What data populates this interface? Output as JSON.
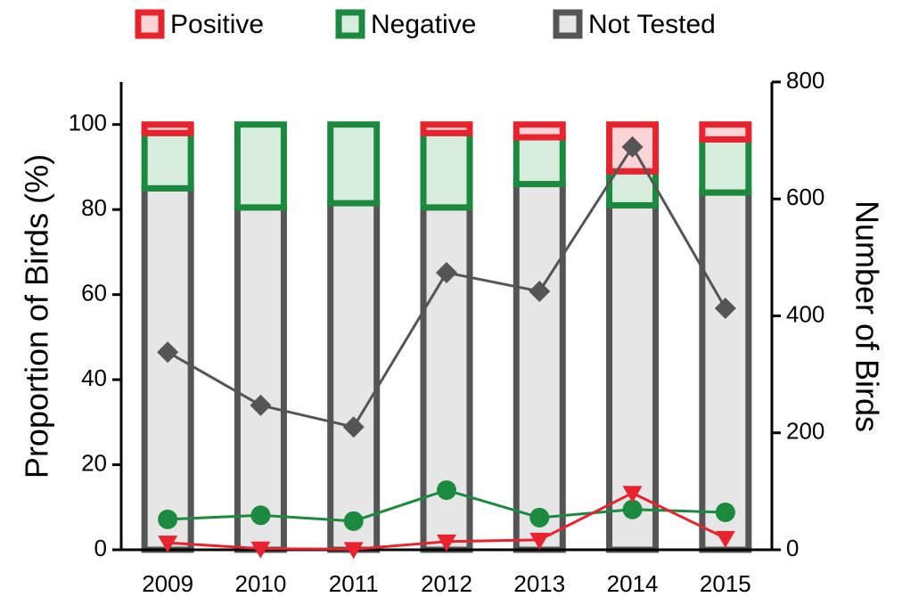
{
  "chart_data": {
    "type": "bar",
    "stacked": true,
    "categories": [
      "2009",
      "2010",
      "2011",
      "2012",
      "2013",
      "2014",
      "2015"
    ],
    "y_label": "Proportion of Birds (%)",
    "y2_label": "Number of Birds",
    "ylim": [
      0,
      110
    ],
    "yticks": [
      0,
      20,
      40,
      60,
      80,
      100
    ],
    "y2lim": [
      0,
      800
    ],
    "y2ticks": [
      0,
      200,
      400,
      600,
      800
    ],
    "legend": "top",
    "series": [
      {
        "name": "Not Tested",
        "color": "#555555",
        "fill": "#e6e6e6",
        "values": [
          85,
          80.5,
          81.5,
          80.5,
          86,
          81,
          84
        ]
      },
      {
        "name": "Negative",
        "color": "#1b8a3f",
        "fill": "#d7ecdc",
        "values": [
          13,
          19.5,
          18.5,
          17.5,
          11,
          8,
          12.5
        ]
      },
      {
        "name": "Positive",
        "color": "#e8232e",
        "fill": "#fbd4d7",
        "values": [
          2,
          0,
          0,
          2,
          3,
          11,
          3.5
        ]
      }
    ],
    "lines": [
      {
        "color": "#555555",
        "marker": "diamond",
        "axis": "y2",
        "values": [
          338,
          247,
          210,
          474,
          442,
          689,
          413
        ]
      },
      {
        "color": "#1b8a3f",
        "marker": "circle",
        "axis": "y2",
        "values": [
          52,
          59,
          49,
          102,
          55,
          69,
          64
        ]
      },
      {
        "color": "#e8232e",
        "marker": "triangle-down",
        "axis": "y2",
        "values": [
          12,
          2,
          1,
          14,
          17,
          97,
          20
        ]
      }
    ]
  }
}
